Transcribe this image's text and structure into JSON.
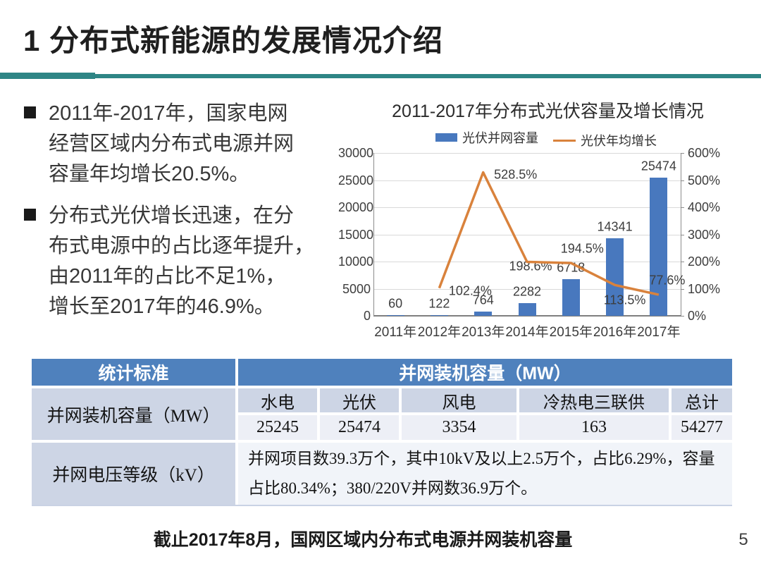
{
  "header": {
    "title": "1  分布式新能源的发展情况介绍",
    "accent_color": "#2e8585"
  },
  "bullets": [
    {
      "text": "2011年-2017年，国家电网\n经营区域内分布式电源并网\n容量年均增长20.5%。"
    },
    {
      "text": "分布式光伏增长迅速，在分\n布式电源中的占比逐年提升，\n由2011年的占比不足1%，\n增长至2017年的46.9%。"
    }
  ],
  "chart_data": {
    "type": "bar",
    "title": "2011-2017年分布式光伏容量及增长情况",
    "categories": [
      "2011年",
      "2012年",
      "2013年",
      "2014年",
      "2015年",
      "2016年",
      "2017年"
    ],
    "series": [
      {
        "name": "光伏并网容量",
        "type": "bar",
        "axis": "left",
        "color": "#4878be",
        "values": [
          60,
          122,
          764,
          2282,
          6718,
          14341,
          25474
        ],
        "value_labels": [
          "60",
          "122",
          "764",
          "2282",
          "6718",
          "14341",
          "25474"
        ]
      },
      {
        "name": "光伏年均增长",
        "type": "line",
        "axis": "right",
        "color": "#d9823c",
        "values": [
          null,
          102.4,
          528.5,
          198.6,
          194.5,
          113.5,
          77.6
        ],
        "point_labels": [
          "",
          "102.4%",
          "528.5%",
          "198.6%",
          "194.5%",
          "113.5%",
          "77.6%"
        ],
        "label_offsets": [
          [
            0,
            0
          ],
          [
            44,
            4
          ],
          [
            46,
            3
          ],
          [
            5,
            6
          ],
          [
            16,
            -20
          ],
          [
            14,
            22
          ],
          [
            12,
            -20
          ]
        ]
      }
    ],
    "left_axis": {
      "min": 0,
      "max": 30000,
      "step": 5000,
      "ticks": [
        "0",
        "5000",
        "10000",
        "15000",
        "20000",
        "25000",
        "30000"
      ]
    },
    "right_axis": {
      "min": 0,
      "max": 600,
      "step": 100,
      "ticks": [
        "0%",
        "100%",
        "200%",
        "300%",
        "400%",
        "500%",
        "600%"
      ]
    },
    "legend_position": "top",
    "grid": true
  },
  "table": {
    "col1_header": "统计标准",
    "col2_header": "并网装机容量（MW）",
    "rows": [
      {
        "label": "并网装机容量（MW）",
        "columns": [
          "水电",
          "光伏",
          "风电",
          "冷热电三联供",
          "总计"
        ],
        "values": [
          "25245",
          "25474",
          "3354",
          "163",
          "54277"
        ]
      },
      {
        "label": "并网电压等级（kV）",
        "text": "并网项目数39.3万个，其中10kV及以上2.5万个，占比6.29%，容量\n占比80.34%；380/220V并网数36.9万个。"
      }
    ]
  },
  "footer": {
    "note": "截止2017年8月，国网区域内分布式电源并网装机容量",
    "page_number": "5"
  }
}
